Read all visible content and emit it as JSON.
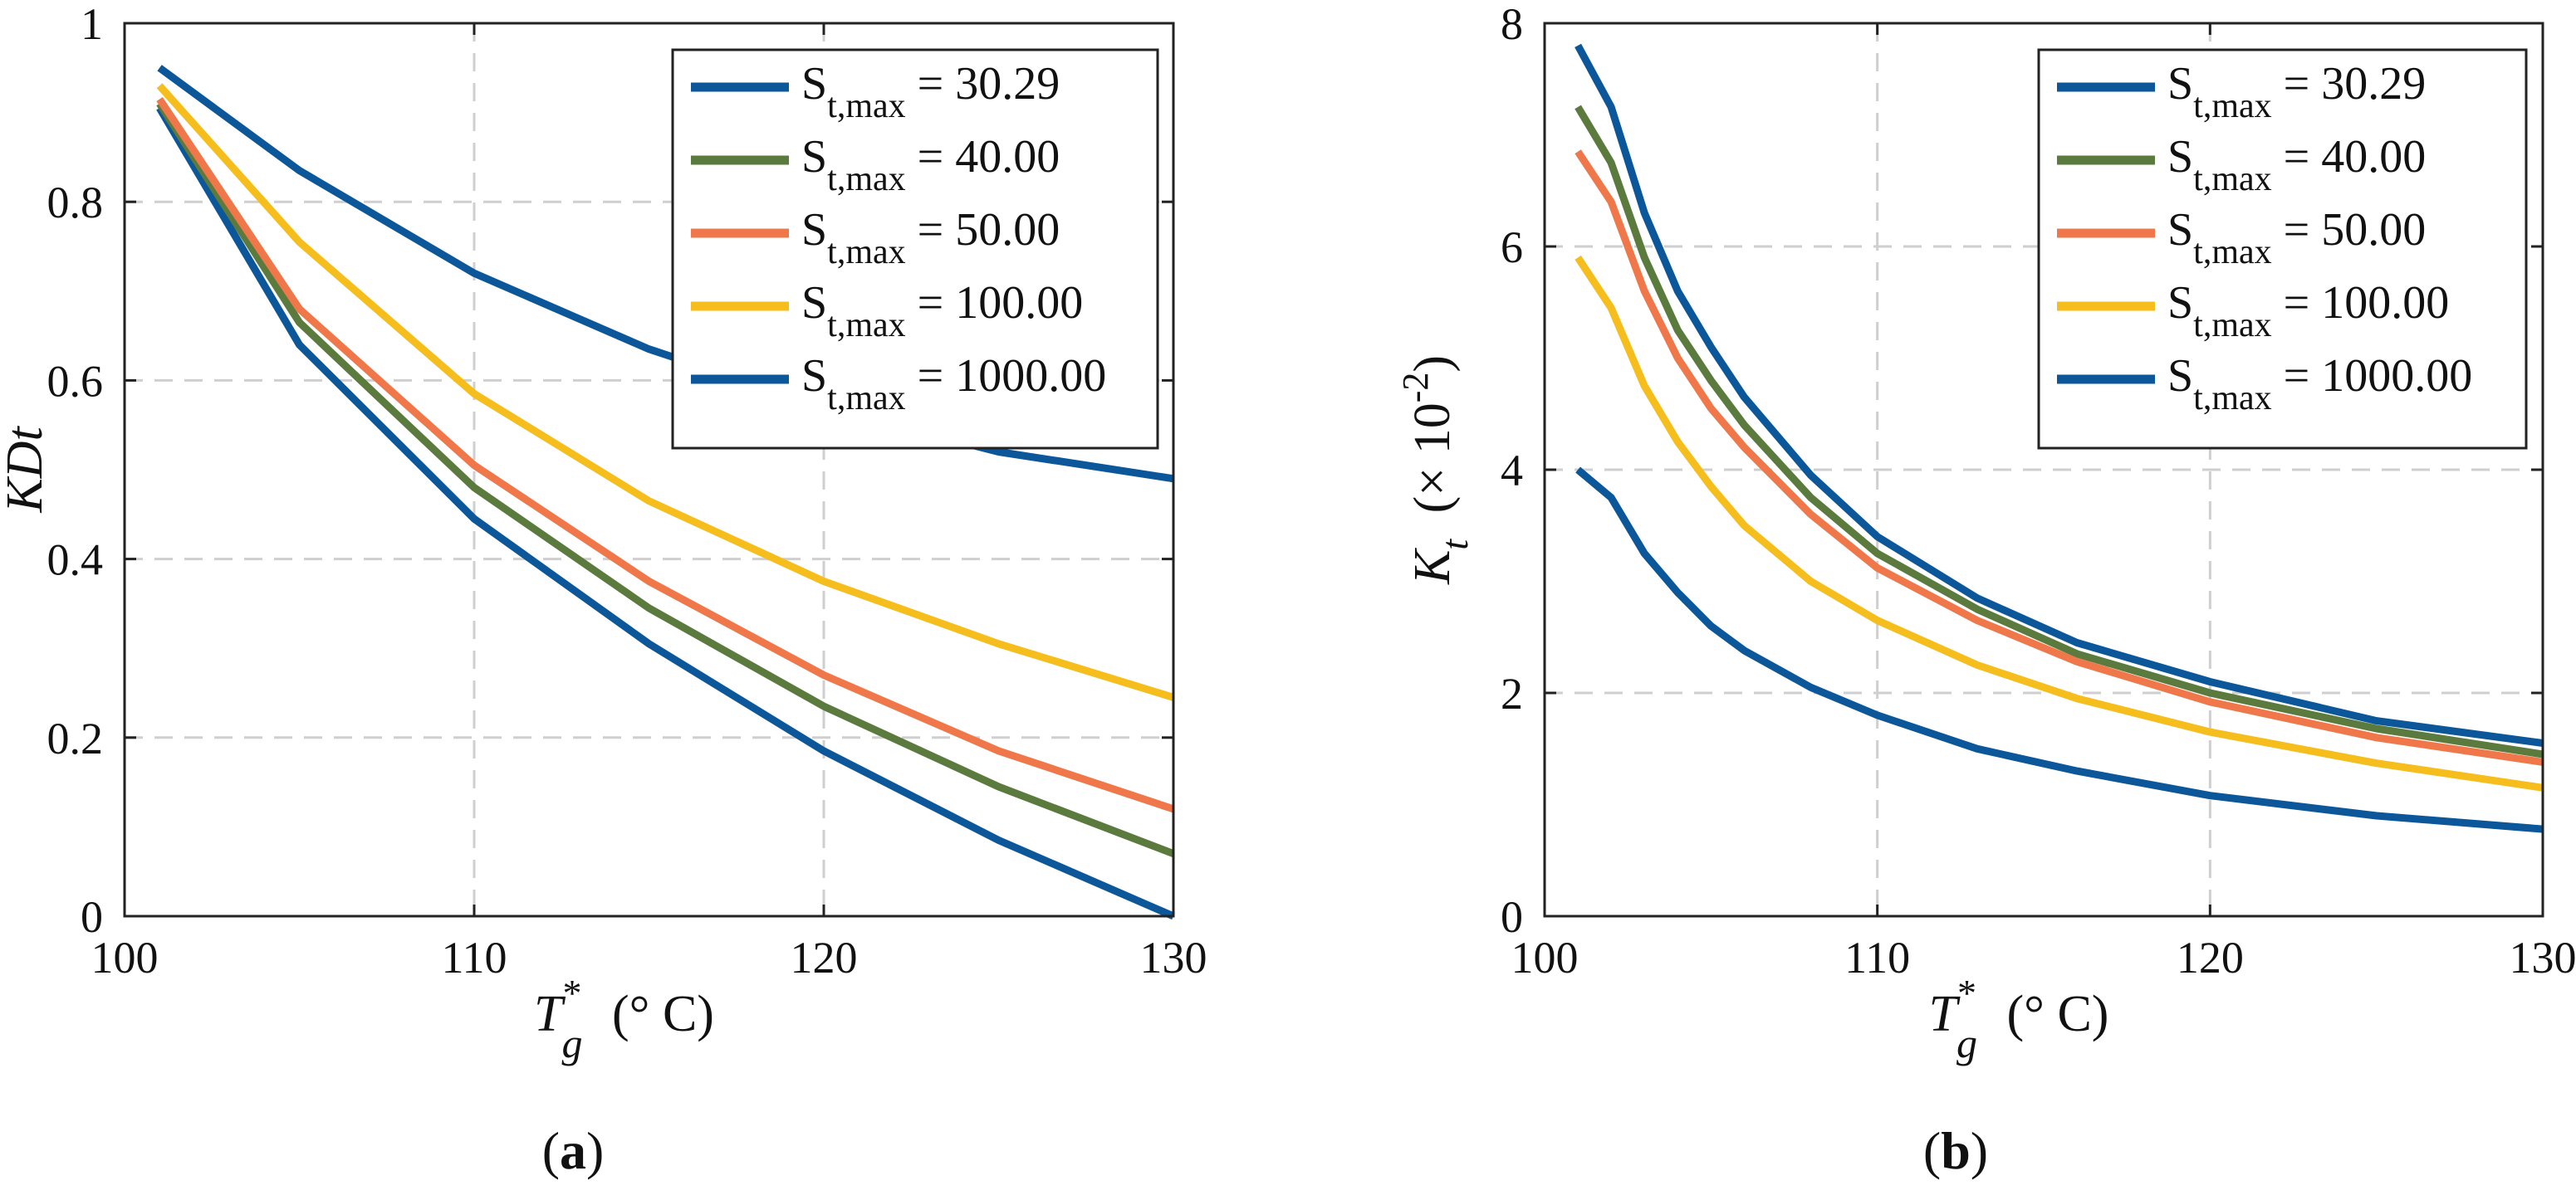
{
  "panels": [
    {
      "label_open": "(",
      "label_letter": "a",
      "label_close": ")",
      "ylabel": "KDt",
      "xlabel_main": "T",
      "xlabel_sub": "g",
      "xlabel_sup": "*",
      "xlabel_unit": "(° C)",
      "ylabel_parts": null
    },
    {
      "label_open": "(",
      "label_letter": "b",
      "label_close": ")",
      "ylabel_main": "K",
      "ylabel_sub": "t",
      "ylabel_unit_pre": "(× 10",
      "ylabel_unit_exp": "-2",
      "ylabel_unit_post": ")",
      "xlabel_main": "T",
      "xlabel_sub": "g",
      "xlabel_sup": "*",
      "xlabel_unit": "(° C)"
    }
  ],
  "legend": [
    {
      "main": "S",
      "sub": "t,max",
      "value": " = 30.29",
      "color": "#0b5799"
    },
    {
      "main": "S",
      "sub": "t,max",
      "value": " = 40.00",
      "color": "#5b7a3e"
    },
    {
      "main": "S",
      "sub": "t,max",
      "value": " = 50.00",
      "color": "#f0774a"
    },
    {
      "main": "S",
      "sub": "t,max",
      "value": " = 100.00",
      "color": "#f5be1d"
    },
    {
      "main": "S",
      "sub": "t,max",
      "value": " = 1000.00",
      "color": "#0b5799"
    }
  ],
  "chart_data": [
    {
      "type": "line",
      "title": "",
      "xlabel": "T_g* (° C)",
      "ylabel": "KDt",
      "xlim": [
        100,
        130
      ],
      "ylim": [
        0,
        1
      ],
      "xticks": [
        100,
        110,
        120,
        130
      ],
      "yticks": [
        0,
        0.2,
        0.4,
        0.6,
        0.8,
        1
      ],
      "ytick_labels": [
        "0",
        "0.2",
        "0.4",
        "0.6",
        "0.8",
        "1"
      ],
      "grid": true,
      "legend_position": "top-right",
      "series": [
        {
          "name": "S_t,max = 30.29",
          "color": "#0b5799",
          "x": [
            101,
            105,
            110,
            115,
            120,
            125,
            130
          ],
          "y": [
            0.905,
            0.64,
            0.445,
            0.305,
            0.185,
            0.085,
            0.0
          ]
        },
        {
          "name": "S_t,max = 40.00",
          "color": "#5b7a3e",
          "x": [
            101,
            105,
            110,
            115,
            120,
            125,
            130
          ],
          "y": [
            0.91,
            0.665,
            0.48,
            0.345,
            0.235,
            0.145,
            0.07
          ]
        },
        {
          "name": "S_t,max = 50.00",
          "color": "#f0774a",
          "x": [
            101,
            105,
            110,
            115,
            120,
            125,
            130
          ],
          "y": [
            0.915,
            0.68,
            0.505,
            0.375,
            0.27,
            0.185,
            0.12
          ]
        },
        {
          "name": "S_t,max = 100.00",
          "color": "#f5be1d",
          "x": [
            101,
            105,
            110,
            115,
            120,
            125,
            130
          ],
          "y": [
            0.93,
            0.755,
            0.585,
            0.465,
            0.375,
            0.305,
            0.245
          ]
        },
        {
          "name": "S_t,max = 1000.00",
          "color": "#0b5799",
          "x": [
            101,
            105,
            110,
            115,
            120,
            125,
            130
          ],
          "y": [
            0.95,
            0.835,
            0.72,
            0.635,
            0.57,
            0.52,
            0.49
          ]
        }
      ]
    },
    {
      "type": "line",
      "title": "",
      "xlabel": "T_g* (° C)",
      "ylabel": "K_t (× 10^-2)",
      "xlim": [
        100,
        130
      ],
      "ylim": [
        0,
        8
      ],
      "xticks": [
        100,
        110,
        120,
        130
      ],
      "yticks": [
        0,
        2,
        4,
        6,
        8
      ],
      "ytick_labels": [
        "0",
        "2",
        "4",
        "6",
        "8"
      ],
      "grid": true,
      "legend_position": "top-right",
      "series": [
        {
          "name": "S_t,max = 30.29",
          "color": "#0b5799",
          "x": [
            101,
            102,
            103,
            104,
            105,
            106,
            108,
            110,
            113,
            116,
            120,
            125,
            130
          ],
          "y": [
            7.8,
            7.25,
            6.3,
            5.6,
            5.1,
            4.65,
            3.95,
            3.4,
            2.85,
            2.45,
            2.1,
            1.75,
            1.55
          ]
        },
        {
          "name": "S_t,max = 40.00",
          "color": "#5b7a3e",
          "x": [
            101,
            102,
            103,
            104,
            105,
            106,
            108,
            110,
            113,
            116,
            120,
            125,
            130
          ],
          "y": [
            7.25,
            6.75,
            5.9,
            5.25,
            4.8,
            4.4,
            3.75,
            3.25,
            2.75,
            2.35,
            2.0,
            1.68,
            1.45
          ]
        },
        {
          "name": "S_t,max = 50.00",
          "color": "#f0774a",
          "x": [
            101,
            102,
            103,
            104,
            105,
            106,
            108,
            110,
            113,
            116,
            120,
            125,
            130
          ],
          "y": [
            6.85,
            6.4,
            5.6,
            5.0,
            4.55,
            4.2,
            3.6,
            3.12,
            2.65,
            2.28,
            1.92,
            1.6,
            1.38
          ]
        },
        {
          "name": "S_t,max = 100.00",
          "color": "#f5be1d",
          "x": [
            101,
            102,
            103,
            104,
            105,
            106,
            108,
            110,
            113,
            116,
            120,
            125,
            130
          ],
          "y": [
            5.9,
            5.45,
            4.75,
            4.25,
            3.85,
            3.5,
            3.0,
            2.65,
            2.25,
            1.95,
            1.65,
            1.37,
            1.15
          ]
        },
        {
          "name": "S_t,max = 1000.00",
          "color": "#0b5799",
          "x": [
            101,
            102,
            103,
            104,
            105,
            106,
            108,
            110,
            113,
            116,
            120,
            125,
            130
          ],
          "y": [
            4.0,
            3.75,
            3.25,
            2.9,
            2.6,
            2.38,
            2.05,
            1.8,
            1.5,
            1.3,
            1.08,
            0.9,
            0.78
          ]
        }
      ]
    }
  ]
}
